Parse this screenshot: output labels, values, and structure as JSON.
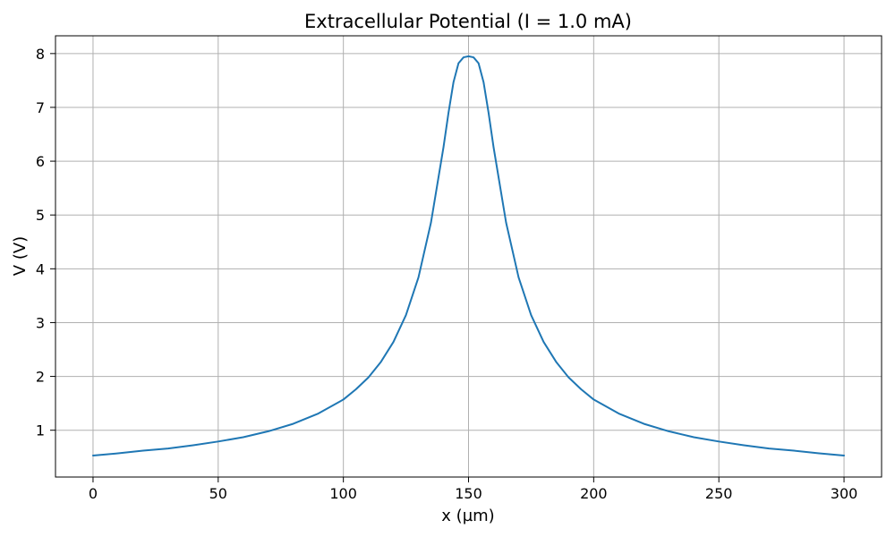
{
  "chart_data": {
    "type": "line",
    "title": "Extracellular Potential (I = 1.0 mA)",
    "xlabel": "x (µm)",
    "ylabel": "V (V)",
    "xlim": [
      -15,
      315
    ],
    "ylim": [
      0.13,
      8.33
    ],
    "xticks": [
      0,
      50,
      100,
      150,
      200,
      250,
      300
    ],
    "yticks": [
      1,
      2,
      3,
      4,
      5,
      6,
      7,
      8
    ],
    "grid": true,
    "line_color": "#1f77b4",
    "series": [
      {
        "x": [
          0,
          10,
          20,
          30,
          40,
          50,
          60,
          70,
          80,
          90,
          100,
          105,
          110,
          115,
          120,
          125,
          130,
          135,
          140,
          142,
          144,
          146,
          148,
          150,
          152,
          154,
          156,
          158,
          160,
          165,
          170,
          175,
          180,
          185,
          190,
          195,
          200,
          210,
          220,
          230,
          240,
          250,
          260,
          270,
          280,
          290,
          300
        ],
        "y": [
          0.53,
          0.57,
          0.62,
          0.66,
          0.72,
          0.79,
          0.87,
          0.98,
          1.12,
          1.31,
          1.57,
          1.76,
          1.98,
          2.27,
          2.64,
          3.14,
          3.84,
          4.86,
          6.26,
          6.9,
          7.47,
          7.82,
          7.93,
          7.95,
          7.93,
          7.82,
          7.47,
          6.9,
          6.26,
          4.86,
          3.84,
          3.14,
          2.64,
          2.27,
          1.98,
          1.76,
          1.57,
          1.31,
          1.12,
          0.98,
          0.87,
          0.79,
          0.72,
          0.66,
          0.62,
          0.57,
          0.53
        ]
      }
    ]
  }
}
